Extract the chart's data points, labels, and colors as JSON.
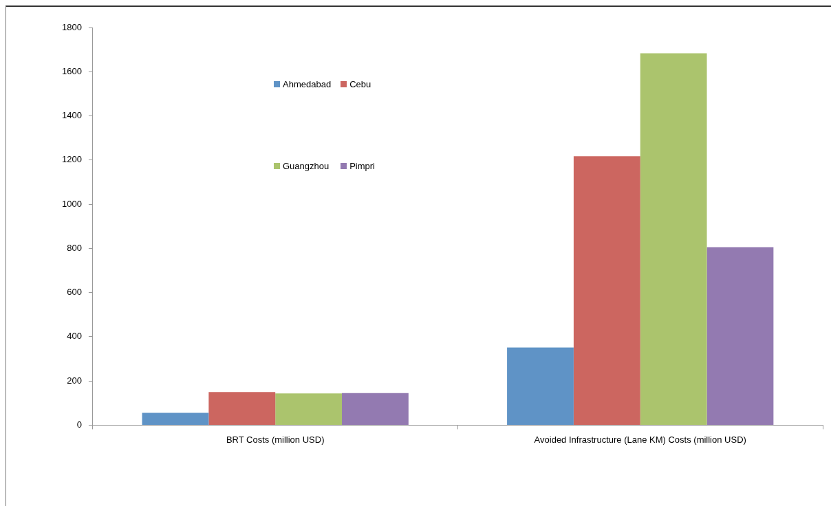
{
  "chart_data": {
    "type": "bar",
    "categories": [
      "BRT Costs (million USD)",
      "Avoided Infrastructure (Lane KM) Costs (million USD)"
    ],
    "series": [
      {
        "name": "Ahmedabad",
        "color": "#5f93c6",
        "values": [
          56,
          351
        ]
      },
      {
        "name": "Cebu",
        "color": "#cc6660",
        "values": [
          150,
          1217
        ]
      },
      {
        "name": "Guangzhou",
        "color": "#abc46d",
        "values": [
          144,
          1683
        ]
      },
      {
        "name": "Pimpri",
        "color": "#937ab1",
        "values": [
          145,
          806
        ]
      }
    ],
    "ylim": [
      0,
      1800
    ],
    "yticks": [
      0,
      200,
      400,
      600,
      800,
      1000,
      1200,
      1400,
      1600,
      1800
    ],
    "grid": false,
    "legend": "top left"
  }
}
